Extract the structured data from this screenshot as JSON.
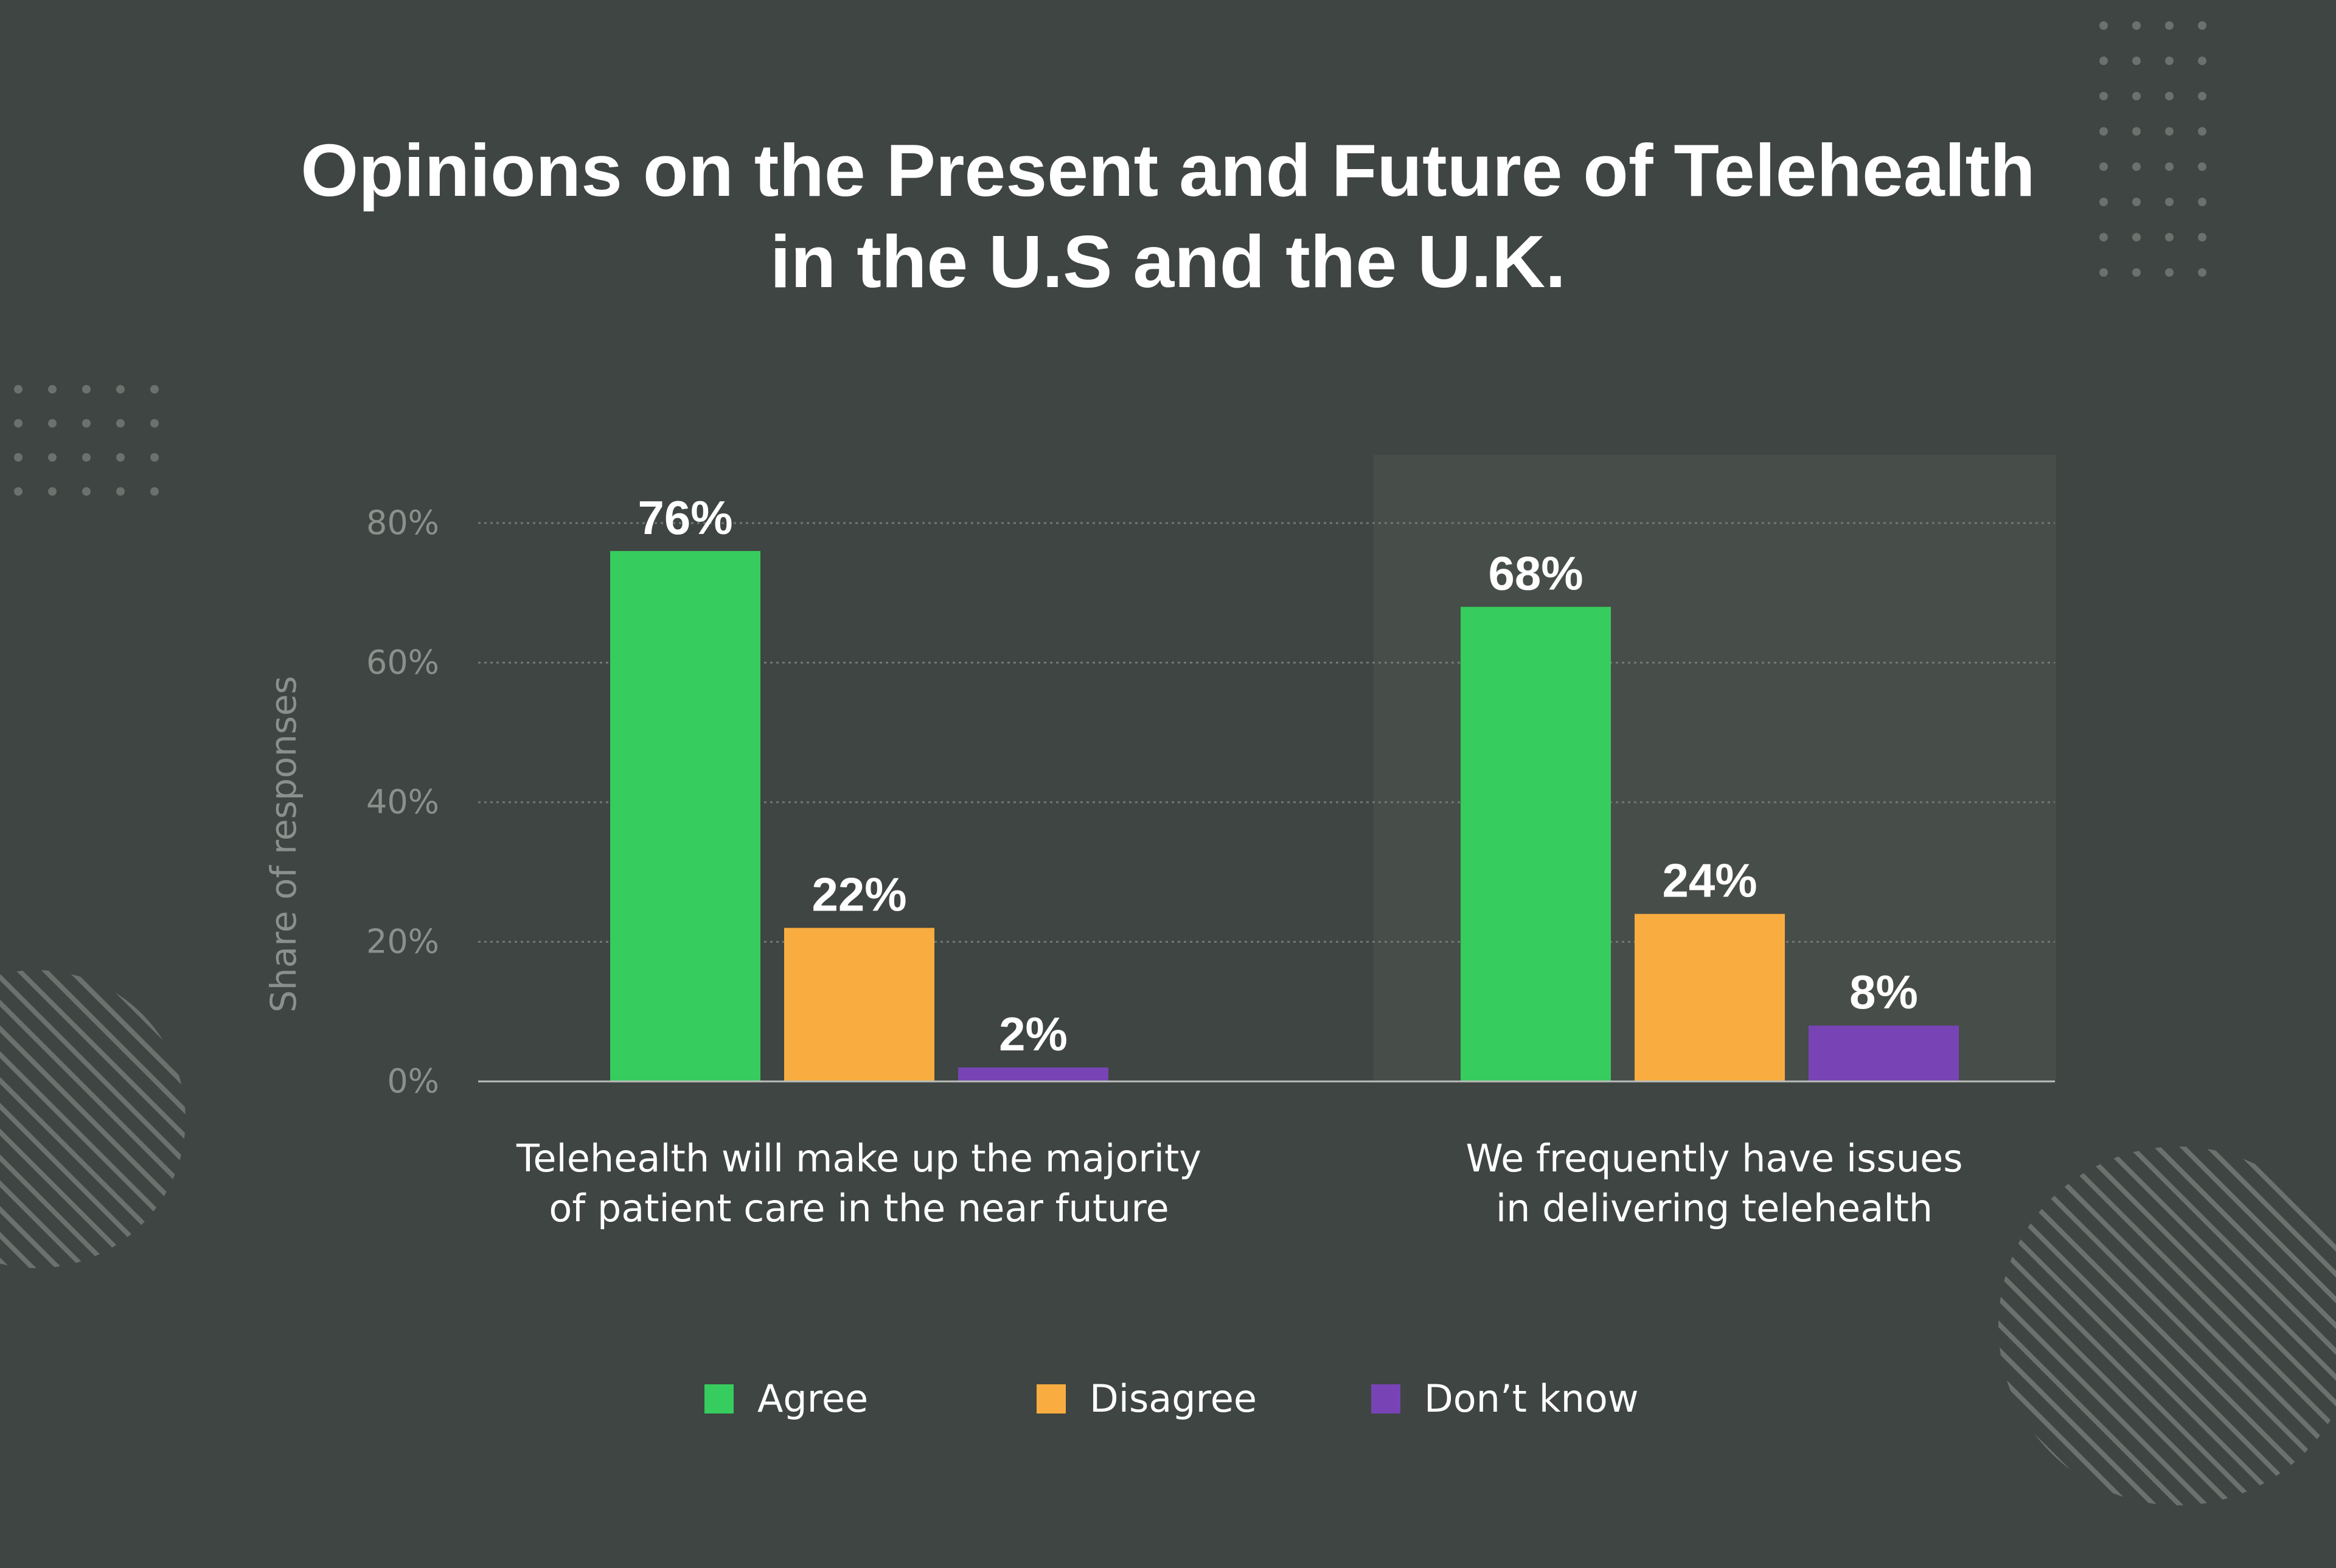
{
  "chart_data": {
    "type": "bar",
    "title": [
      "Opinions on the Present and Future of Telehealth",
      "in the U.S and the U.K."
    ],
    "ylabel": "Share of responses",
    "ylim": [
      0,
      80
    ],
    "yticks": [
      "0%",
      "20%",
      "40%",
      "60%",
      "80%"
    ],
    "categories": [
      [
        "Telehealth will make up the majority",
        "of patient care in the near future"
      ],
      [
        "We frequently have issues",
        "in delivering telehealth"
      ]
    ],
    "series": [
      {
        "name": "Agree",
        "values": [
          76,
          68
        ],
        "labels": [
          "76%",
          "68%"
        ],
        "color": "#36cc5e"
      },
      {
        "name": "Disagree",
        "values": [
          22,
          24
        ],
        "labels": [
          "22%",
          "24%"
        ],
        "color": "#f9ad40"
      },
      {
        "name": "Don’t know",
        "values": [
          2,
          8
        ],
        "labels": [
          "2%",
          "8%"
        ],
        "color": "#7844b5"
      }
    ],
    "legend_position": "bottom",
    "grid": true,
    "highlight_category": 1
  },
  "colors": {
    "background": "#3f4542",
    "highlight_panel": "#474d48",
    "grid": "#727874",
    "axis": "#b9bdba",
    "decoration": "#6b716d"
  }
}
